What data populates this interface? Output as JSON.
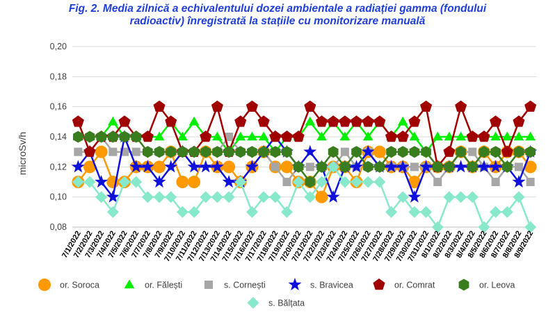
{
  "chart_data": {
    "type": "line",
    "title_line1": "Fig. 2. Media zilnică a echivalentului dozei ambientale a radiației gamma (fondului",
    "title_line2": "radioactiv) înregistrată la stațiile cu monitorizare manuală",
    "ylabel": "microSv/h",
    "xlabel": "",
    "ylim": [
      0.08,
      0.2
    ],
    "yticks": [
      "0,08",
      "0,10",
      "0,12",
      "0,14",
      "0,16",
      "0,18",
      "0,20"
    ],
    "ytick_values": [
      0.08,
      0.1,
      0.12,
      0.14,
      0.16,
      0.18,
      0.2
    ],
    "grid": true,
    "legend_position": "bottom",
    "x": [
      "7/1/2022",
      "7/2/2022",
      "7/3/2022",
      "7/4/2022",
      "7/5/2022",
      "7/6/2022",
      "7/7/2022",
      "7/8/2022",
      "7/9/2022",
      "7/10/2022",
      "7/11/2022",
      "7/12/2022",
      "7/13/2022",
      "7/14/2022",
      "7/15/2022",
      "7/16/2022",
      "7/17/2022",
      "7/18/2022",
      "7/19/2022",
      "7/20/2022",
      "7/21/2022",
      "7/22/2022",
      "7/23/2022",
      "7/24/2022",
      "7/25/2022",
      "7/26/2022",
      "7/27/2022",
      "7/28/2022",
      "7/29/2022",
      "7/30/2022",
      "7/31/2022",
      "8/1/2022",
      "8/2/2022",
      "8/3/2022",
      "8/4/2022",
      "8/5/2022",
      "8/6/2022",
      "8/7/2022",
      "8/8/2022",
      "8/9/2022"
    ],
    "series": [
      {
        "name": "or. Soroca",
        "color": "#FF9900",
        "marker": "circle",
        "values": [
          0.11,
          0.12,
          0.13,
          0.11,
          0.11,
          0.12,
          0.12,
          0.12,
          0.13,
          0.11,
          0.11,
          0.13,
          0.12,
          0.12,
          0.11,
          0.12,
          0.13,
          0.12,
          0.12,
          0.11,
          0.11,
          0.1,
          0.12,
          0.12,
          0.11,
          0.13,
          0.13,
          0.12,
          0.12,
          0.11,
          0.12,
          0.12,
          0.12,
          0.13,
          0.12,
          0.13,
          0.12,
          0.13,
          0.13,
          0.12
        ]
      },
      {
        "name": "or. Fălești",
        "color": "#00EE00",
        "marker": "triangle",
        "values": [
          0.14,
          0.14,
          0.14,
          0.15,
          0.14,
          0.14,
          0.14,
          0.14,
          0.15,
          0.14,
          0.15,
          0.14,
          0.14,
          0.13,
          0.14,
          0.14,
          0.14,
          0.13,
          0.14,
          0.14,
          0.15,
          0.14,
          0.15,
          0.14,
          0.15,
          0.14,
          0.15,
          0.14,
          0.15,
          0.14,
          0.13,
          0.14,
          0.14,
          0.14,
          0.14,
          0.14,
          0.14,
          0.14,
          0.14,
          0.14
        ]
      },
      {
        "name": "s. Cornești",
        "color": "#A6A6A6",
        "marker": "square",
        "values": [
          0.13,
          0.13,
          0.14,
          0.13,
          0.13,
          0.13,
          0.13,
          0.13,
          0.13,
          0.13,
          0.13,
          0.13,
          0.13,
          0.14,
          0.13,
          0.13,
          0.13,
          0.12,
          0.11,
          0.12,
          0.12,
          0.12,
          0.12,
          0.13,
          0.12,
          0.13,
          0.12,
          0.12,
          0.12,
          0.12,
          0.12,
          0.11,
          0.12,
          0.13,
          0.13,
          0.12,
          0.11,
          0.12,
          0.12,
          0.11
        ]
      },
      {
        "name": "s. Bravicea",
        "color": "#1010DD",
        "marker": "star",
        "values": [
          0.12,
          0.13,
          0.11,
          0.1,
          0.14,
          0.12,
          0.12,
          0.11,
          0.12,
          0.13,
          0.12,
          0.12,
          0.12,
          0.11,
          0.11,
          0.12,
          0.13,
          0.14,
          0.13,
          0.12,
          0.13,
          0.12,
          0.1,
          0.12,
          0.12,
          0.13,
          0.12,
          0.12,
          0.12,
          0.1,
          0.12,
          0.12,
          0.12,
          0.12,
          0.12,
          0.12,
          0.12,
          0.12,
          0.11,
          0.13
        ]
      },
      {
        "name": "or. Comrat",
        "color": "#A00000",
        "marker": "pentagon",
        "values": [
          0.15,
          0.13,
          0.14,
          0.14,
          0.15,
          0.14,
          0.14,
          0.16,
          0.15,
          0.13,
          0.13,
          0.14,
          0.16,
          0.13,
          0.15,
          0.16,
          0.15,
          0.14,
          0.14,
          0.14,
          0.16,
          0.15,
          0.15,
          0.15,
          0.15,
          0.15,
          0.15,
          0.14,
          0.14,
          0.15,
          0.16,
          0.12,
          0.13,
          0.16,
          0.14,
          0.14,
          0.15,
          0.13,
          0.15,
          0.16
        ]
      },
      {
        "name": "or. Leova",
        "color": "#3A7D1F",
        "marker": "hexagon",
        "values": [
          0.14,
          0.14,
          0.14,
          0.14,
          0.14,
          0.14,
          0.13,
          0.13,
          0.13,
          0.13,
          0.13,
          0.13,
          0.13,
          0.13,
          0.13,
          0.13,
          0.13,
          0.13,
          0.13,
          0.12,
          0.11,
          0.12,
          0.13,
          0.12,
          0.13,
          0.12,
          0.12,
          0.13,
          0.13,
          0.13,
          0.13,
          0.12,
          0.12,
          0.13,
          0.12,
          0.13,
          0.13,
          0.12,
          0.13,
          0.13
        ]
      },
      {
        "name": "s. Bălțata",
        "color": "#88E8CC",
        "marker": "diamond",
        "values": [
          0.11,
          0.11,
          0.1,
          0.09,
          0.11,
          0.11,
          0.1,
          0.1,
          0.1,
          0.09,
          0.09,
          0.1,
          0.1,
          0.1,
          0.11,
          0.09,
          0.1,
          0.1,
          0.09,
          0.11,
          0.1,
          0.11,
          0.12,
          0.11,
          0.11,
          0.11,
          0.11,
          0.09,
          0.1,
          0.09,
          0.09,
          0.08,
          0.1,
          0.1,
          0.1,
          0.08,
          0.09,
          0.09,
          0.1,
          0.08
        ]
      }
    ]
  }
}
